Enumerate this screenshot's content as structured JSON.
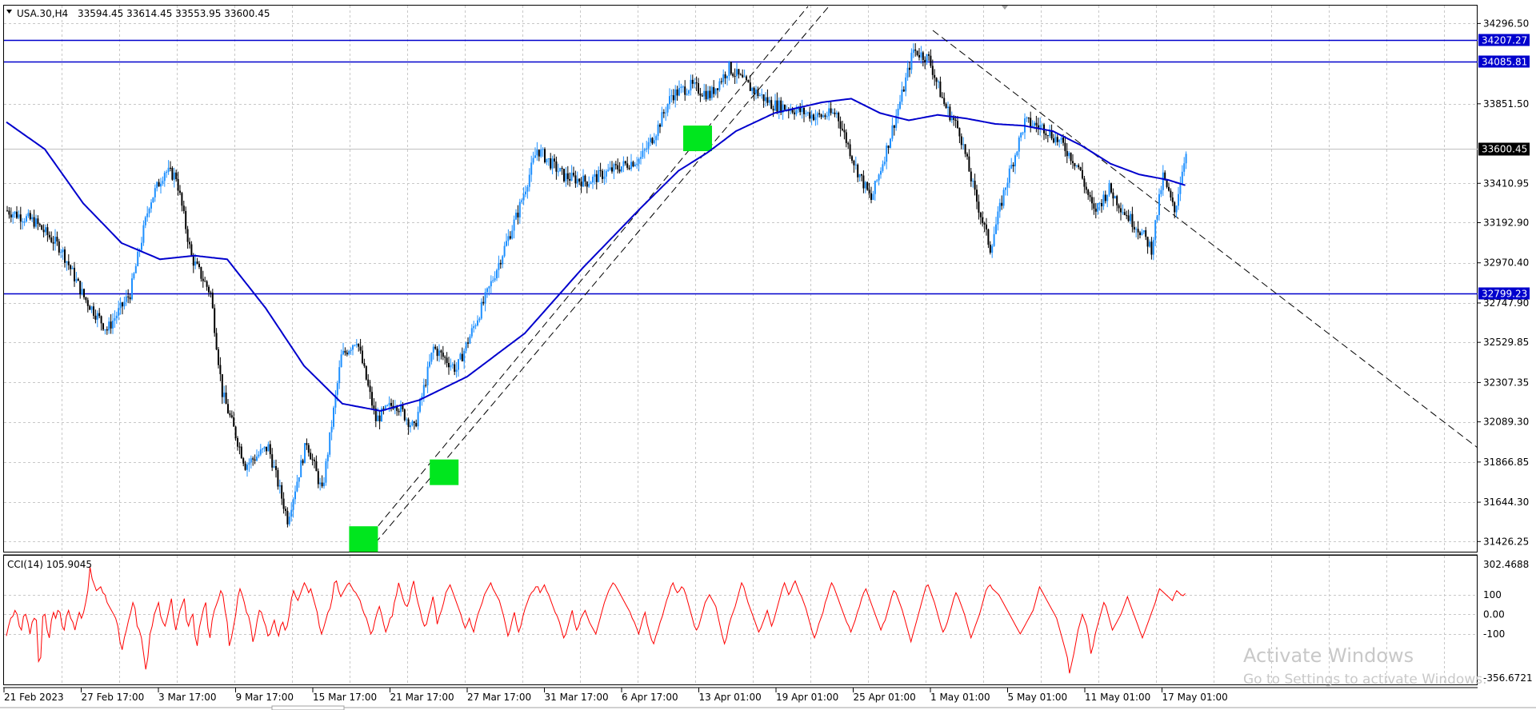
{
  "header": {
    "symbol": "USA.30,H4",
    "ohlc": "33594.45 33614.45 33553.95 33600.45"
  },
  "chart_data": {
    "type": "candlestick",
    "symbol": "USA.30",
    "timeframe": "H4",
    "price_axis_labels": [
      "34296.50",
      "33851.50",
      "33410.95",
      "33192.90",
      "32970.40",
      "32747.90",
      "32529.85",
      "32307.35",
      "32089.30",
      "31866.85",
      "31644.30",
      "31426.25"
    ],
    "price_range": [
      31370,
      34400
    ],
    "time_labels": [
      "21 Feb 2023",
      "27 Feb 17:00",
      "3 Mar 17:00",
      "9 Mar 17:00",
      "15 Mar 17:00",
      "21 Mar 17:00",
      "27 Mar 17:00",
      "31 Mar 17:00",
      "6 Apr 17:00",
      "13 Apr 01:00",
      "19 Apr 01:00",
      "25 Apr 01:00",
      "1 May 01:00",
      "5 May 01:00",
      "11 May 01:00",
      "17 May 01:00"
    ],
    "current_price": "33600.45",
    "current_price_value": 33600.45,
    "horizontal_levels": [
      {
        "label": "34207.27",
        "value": 34207.27
      },
      {
        "label": "34085.81",
        "value": 34085.81
      },
      {
        "label": "32799.23",
        "value": 32799.23
      }
    ],
    "price_path": [
      {
        "i": 0,
        "p": 33260
      },
      {
        "i": 14,
        "p": 33200
      },
      {
        "i": 28,
        "p": 33050
      },
      {
        "i": 40,
        "p": 32780
      },
      {
        "i": 52,
        "p": 32600
      },
      {
        "i": 64,
        "p": 32800
      },
      {
        "i": 74,
        "p": 33300
      },
      {
        "i": 82,
        "p": 33480
      },
      {
        "i": 88,
        "p": 33450
      },
      {
        "i": 96,
        "p": 33000
      },
      {
        "i": 106,
        "p": 32800
      },
      {
        "i": 112,
        "p": 32250
      },
      {
        "i": 124,
        "p": 31850
      },
      {
        "i": 136,
        "p": 31950
      },
      {
        "i": 146,
        "p": 31550
      },
      {
        "i": 156,
        "p": 31980
      },
      {
        "i": 164,
        "p": 31700
      },
      {
        "i": 174,
        "p": 32450
      },
      {
        "i": 182,
        "p": 32550
      },
      {
        "i": 192,
        "p": 32100
      },
      {
        "i": 202,
        "p": 32200
      },
      {
        "i": 212,
        "p": 32050
      },
      {
        "i": 222,
        "p": 32500
      },
      {
        "i": 234,
        "p": 32380
      },
      {
        "i": 250,
        "p": 32800
      },
      {
        "i": 266,
        "p": 33250
      },
      {
        "i": 276,
        "p": 33600
      },
      {
        "i": 290,
        "p": 33450
      },
      {
        "i": 302,
        "p": 33420
      },
      {
        "i": 314,
        "p": 33480
      },
      {
        "i": 330,
        "p": 33550
      },
      {
        "i": 338,
        "p": 33700
      },
      {
        "i": 346,
        "p": 33900
      },
      {
        "i": 356,
        "p": 33950
      },
      {
        "i": 366,
        "p": 33900
      },
      {
        "i": 376,
        "p": 34050
      },
      {
        "i": 386,
        "p": 33950
      },
      {
        "i": 398,
        "p": 33850
      },
      {
        "i": 410,
        "p": 33820
      },
      {
        "i": 422,
        "p": 33780
      },
      {
        "i": 432,
        "p": 33800
      },
      {
        "i": 442,
        "p": 33500
      },
      {
        "i": 450,
        "p": 33320
      },
      {
        "i": 458,
        "p": 33600
      },
      {
        "i": 466,
        "p": 33900
      },
      {
        "i": 472,
        "p": 34150
      },
      {
        "i": 480,
        "p": 34100
      },
      {
        "i": 488,
        "p": 33850
      },
      {
        "i": 496,
        "p": 33700
      },
      {
        "i": 504,
        "p": 33350
      },
      {
        "i": 512,
        "p": 33050
      },
      {
        "i": 520,
        "p": 33400
      },
      {
        "i": 530,
        "p": 33750
      },
      {
        "i": 540,
        "p": 33720
      },
      {
        "i": 550,
        "p": 33620
      },
      {
        "i": 558,
        "p": 33500
      },
      {
        "i": 566,
        "p": 33250
      },
      {
        "i": 574,
        "p": 33380
      },
      {
        "i": 582,
        "p": 33250
      },
      {
        "i": 590,
        "p": 33150
      },
      {
        "i": 596,
        "p": 33050
      },
      {
        "i": 602,
        "p": 33450
      },
      {
        "i": 608,
        "p": 33250
      },
      {
        "i": 614,
        "p": 33600
      }
    ],
    "ma_path": [
      {
        "i": 0,
        "p": 33750
      },
      {
        "i": 20,
        "p": 33600
      },
      {
        "i": 40,
        "p": 33300
      },
      {
        "i": 60,
        "p": 33080
      },
      {
        "i": 80,
        "p": 32990
      },
      {
        "i": 98,
        "p": 33010
      },
      {
        "i": 115,
        "p": 32990
      },
      {
        "i": 135,
        "p": 32720
      },
      {
        "i": 155,
        "p": 32400
      },
      {
        "i": 175,
        "p": 32190
      },
      {
        "i": 195,
        "p": 32150
      },
      {
        "i": 215,
        "p": 32210
      },
      {
        "i": 240,
        "p": 32340
      },
      {
        "i": 270,
        "p": 32580
      },
      {
        "i": 300,
        "p": 32940
      },
      {
        "i": 330,
        "p": 33270
      },
      {
        "i": 350,
        "p": 33480
      },
      {
        "i": 365,
        "p": 33580
      },
      {
        "i": 380,
        "p": 33700
      },
      {
        "i": 400,
        "p": 33800
      },
      {
        "i": 425,
        "p": 33860
      },
      {
        "i": 440,
        "p": 33880
      },
      {
        "i": 455,
        "p": 33800
      },
      {
        "i": 470,
        "p": 33760
      },
      {
        "i": 485,
        "p": 33790
      },
      {
        "i": 500,
        "p": 33770
      },
      {
        "i": 515,
        "p": 33740
      },
      {
        "i": 530,
        "p": 33730
      },
      {
        "i": 545,
        "p": 33700
      },
      {
        "i": 560,
        "p": 33620
      },
      {
        "i": 575,
        "p": 33520
      },
      {
        "i": 590,
        "p": 33460
      },
      {
        "i": 605,
        "p": 33430
      },
      {
        "i": 614,
        "p": 33400
      }
    ],
    "signal_markers": [
      {
        "i": 186,
        "p": 31440
      },
      {
        "i": 228,
        "p": 31810
      },
      {
        "i": 360,
        "p": 33660
      }
    ],
    "cci": {
      "label": "CCI(14) 105.9045",
      "axis_labels": [
        "302.4688",
        "100",
        "0.00",
        "-100",
        "-356.6721"
      ],
      "range": [
        -356.6721,
        302.4688
      ],
      "values": [
        -110,
        -60,
        -20,
        -10,
        20,
        0,
        -60,
        -80,
        -10,
        0,
        -40,
        -100,
        -40,
        -20,
        -30,
        -240,
        -220,
        -10,
        0,
        -80,
        -120,
        -30,
        10,
        -20,
        20,
        10,
        -60,
        -80,
        -10,
        20,
        -20,
        -40,
        -80,
        -30,
        10,
        -20,
        10,
        60,
        120,
        240,
        180,
        150,
        120,
        130,
        140,
        110,
        100,
        60,
        40,
        20,
        0,
        -20,
        -60,
        -140,
        -180,
        -120,
        -80,
        -30,
        10,
        60,
        30,
        -60,
        -80,
        -120,
        -200,
        -280,
        -220,
        -100,
        -60,
        0,
        30,
        60,
        -10,
        -40,
        -60,
        -20,
        30,
        80,
        -20,
        -80,
        -30,
        20,
        50,
        80,
        -30,
        -60,
        -20,
        0,
        -110,
        -160,
        -70,
        -20,
        30,
        60,
        -70,
        -120,
        -30,
        20,
        50,
        80,
        120,
        100,
        20,
        -40,
        -160,
        -120,
        -60,
        0,
        90,
        130,
        100,
        60,
        10,
        -10,
        -60,
        -140,
        -100,
        -30,
        20,
        10,
        -30,
        -60,
        -110,
        -100,
        -60,
        -30,
        -80,
        -110,
        -60,
        -40,
        -80,
        -60,
        0,
        80,
        120,
        90,
        70,
        100,
        130,
        160,
        140,
        110,
        130,
        90,
        50,
        10,
        -60,
        -100,
        -70,
        -30,
        10,
        30,
        80,
        160,
        170,
        120,
        90,
        110,
        130,
        150,
        160,
        140,
        120,
        110,
        90,
        70,
        30,
        0,
        -20,
        -60,
        -100,
        -80,
        -30,
        10,
        40,
        0,
        -50,
        -90,
        -60,
        -20,
        -10,
        60,
        100,
        160,
        120,
        80,
        50,
        40,
        70,
        130,
        170,
        110,
        60,
        20,
        -30,
        -60,
        -50,
        0,
        40,
        90,
        30,
        -50,
        -10,
        20,
        60,
        110,
        130,
        150,
        120,
        90,
        60,
        30,
        0,
        -40,
        -70,
        -50,
        -20,
        -60,
        -90,
        -40,
        0,
        30,
        60,
        100,
        120,
        140,
        160,
        130,
        110,
        90,
        70,
        30,
        -10,
        -60,
        -110,
        -80,
        -30,
        10,
        -50,
        -90,
        -60,
        -10,
        30,
        60,
        90,
        110,
        120,
        140,
        140,
        110,
        130,
        150,
        120,
        100,
        70,
        40,
        10,
        -10,
        -40,
        -80,
        -120,
        -100,
        -60,
        -20,
        20,
        -40,
        -80,
        -60,
        -20,
        0,
        20,
        -10,
        -40,
        -60,
        -80,
        -100,
        -60,
        -20,
        20,
        60,
        90,
        120,
        140,
        160,
        150,
        130,
        110,
        90,
        70,
        50,
        30,
        10,
        -20,
        -40,
        -70,
        -100,
        -60,
        -20,
        10,
        -50,
        -90,
        -130,
        -150,
        -110,
        -80,
        -40,
        -10,
        30,
        70,
        100,
        140,
        160,
        130,
        110,
        120,
        140,
        130,
        100,
        60,
        20,
        -20,
        -60,
        -80,
        -60,
        -20,
        20,
        60,
        80,
        100,
        80,
        60,
        40,
        -10,
        -60,
        -110,
        -150,
        -120,
        -60,
        -20,
        10,
        40,
        80,
        120,
        160,
        140,
        100,
        60,
        30,
        0,
        -30,
        -60,
        -90,
        -70,
        -40,
        -10,
        20,
        -20,
        -60,
        -30,
        10,
        50,
        90,
        130,
        160,
        130,
        100,
        120,
        150,
        170,
        140,
        110,
        90,
        60,
        30,
        -10,
        -50,
        -90,
        -120,
        -90,
        -50,
        -20,
        10,
        60,
        90,
        130,
        160,
        140,
        110,
        80,
        50,
        20,
        -10,
        -40,
        -60,
        -90,
        -60,
        -30,
        10,
        40,
        80,
        110,
        130,
        100,
        70,
        40,
        10,
        -20,
        -50,
        -80,
        -50,
        -30,
        10,
        50,
        90,
        120,
        110,
        80,
        50,
        20,
        -20,
        -60,
        -100,
        -140,
        -100,
        -60,
        -20,
        20,
        60,
        100,
        140,
        150,
        120,
        90,
        60,
        20,
        -20,
        -60,
        -90,
        -70,
        -40,
        0,
        40,
        80,
        110,
        90,
        60,
        30,
        0,
        -40,
        -80,
        -120,
        -90,
        -60,
        -30,
        0,
        40,
        80,
        120,
        140,
        150,
        130,
        120,
        110,
        100,
        80,
        60,
        40,
        20,
        0,
        -20,
        -40,
        -60,
        -80,
        -100,
        -80,
        -60,
        -40,
        -20,
        0,
        20,
        60,
        100,
        140,
        120,
        100,
        80,
        60,
        40,
        20,
        0,
        -20,
        -60,
        -100,
        -140,
        -180,
        -220,
        -300,
        -250,
        -200,
        -140,
        -80,
        -40,
        0,
        -30,
        -60,
        -120,
        -200,
        -160,
        -100,
        -60,
        -20,
        20,
        60,
        40,
        0,
        -40,
        -80,
        -60,
        -40,
        -20,
        0,
        30,
        60,
        90,
        60,
        30,
        0,
        -30,
        -60,
        -90,
        -120,
        -90,
        -60,
        -30,
        0,
        30,
        60,
        100,
        130,
        120,
        110,
        100,
        90,
        80,
        70,
        100,
        120,
        110,
        100,
        95,
        105.9
      ]
    }
  },
  "watermark": {
    "title": "Activate Windows",
    "subtitle": "Go to Settings to activate Windows."
  },
  "colors": {
    "bull": "#1e90ff",
    "bear": "#000000",
    "ma": "#0000cd",
    "level": "#0000cd",
    "cci": "#ff0000",
    "marker": "#00e61e",
    "grid": "#c8c8c8"
  }
}
